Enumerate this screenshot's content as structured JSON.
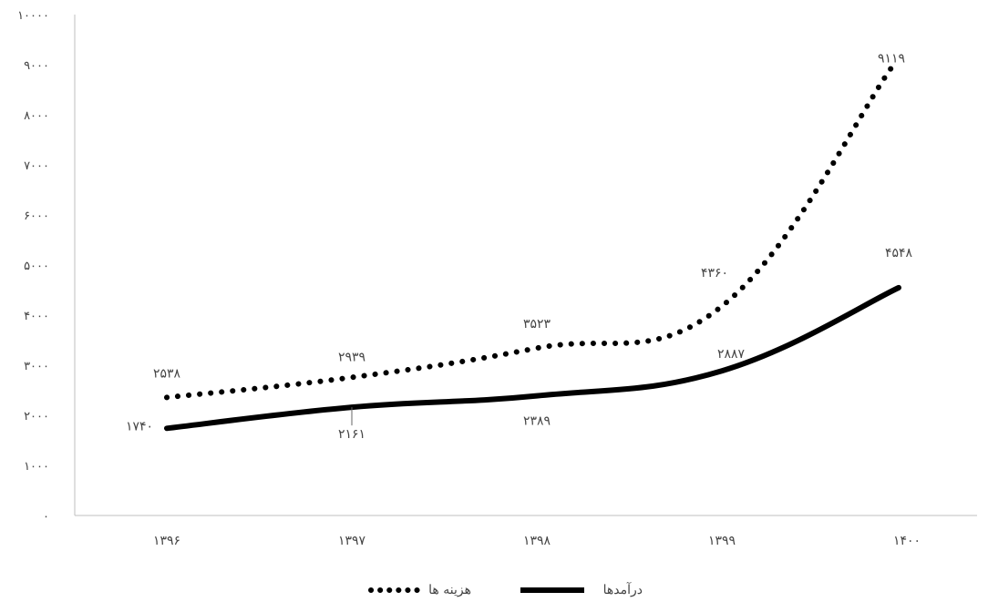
{
  "chart_data": {
    "type": "line",
    "categories": [
      "۱۳۹۶",
      "۱۳۹۷",
      "۱۳۹۸",
      "۱۳۹۹",
      "۱۴۰۰"
    ],
    "ylim": [
      0,
      10000
    ],
    "yticks": [
      0,
      1000,
      2000,
      3000,
      4000,
      5000,
      6000,
      7000,
      8000,
      9000,
      10000
    ],
    "ytick_labels": [
      "۰",
      "۱۰۰۰",
      "۲۰۰۰",
      "۳۰۰۰",
      "۴۰۰۰",
      "۵۰۰۰",
      "۶۰۰۰",
      "۷۰۰۰",
      "۸۰۰۰",
      "۹۰۰۰",
      "۱۰۰۰۰"
    ],
    "grid": false,
    "legend_position": "bottom",
    "series": [
      {
        "name": "هزینه ها",
        "style": "dotted",
        "color": "#000000",
        "values": [
          2538,
          2939,
          3523,
          4360,
          9119
        ],
        "value_labels": [
          "۲۵۳۸",
          "۲۹۳۹",
          "۳۵۲۳",
          "۴۳۶۰",
          "۹۱۱۹"
        ]
      },
      {
        "name": "درآمدها",
        "style": "solid",
        "color": "#000000",
        "values": [
          1740,
          2161,
          2389,
          2887,
          4548
        ],
        "value_labels": [
          "۱۷۴۰",
          "۲۱۶۱",
          "۲۳۸۹",
          "۲۸۸۷",
          "۴۵۴۸"
        ]
      }
    ]
  }
}
